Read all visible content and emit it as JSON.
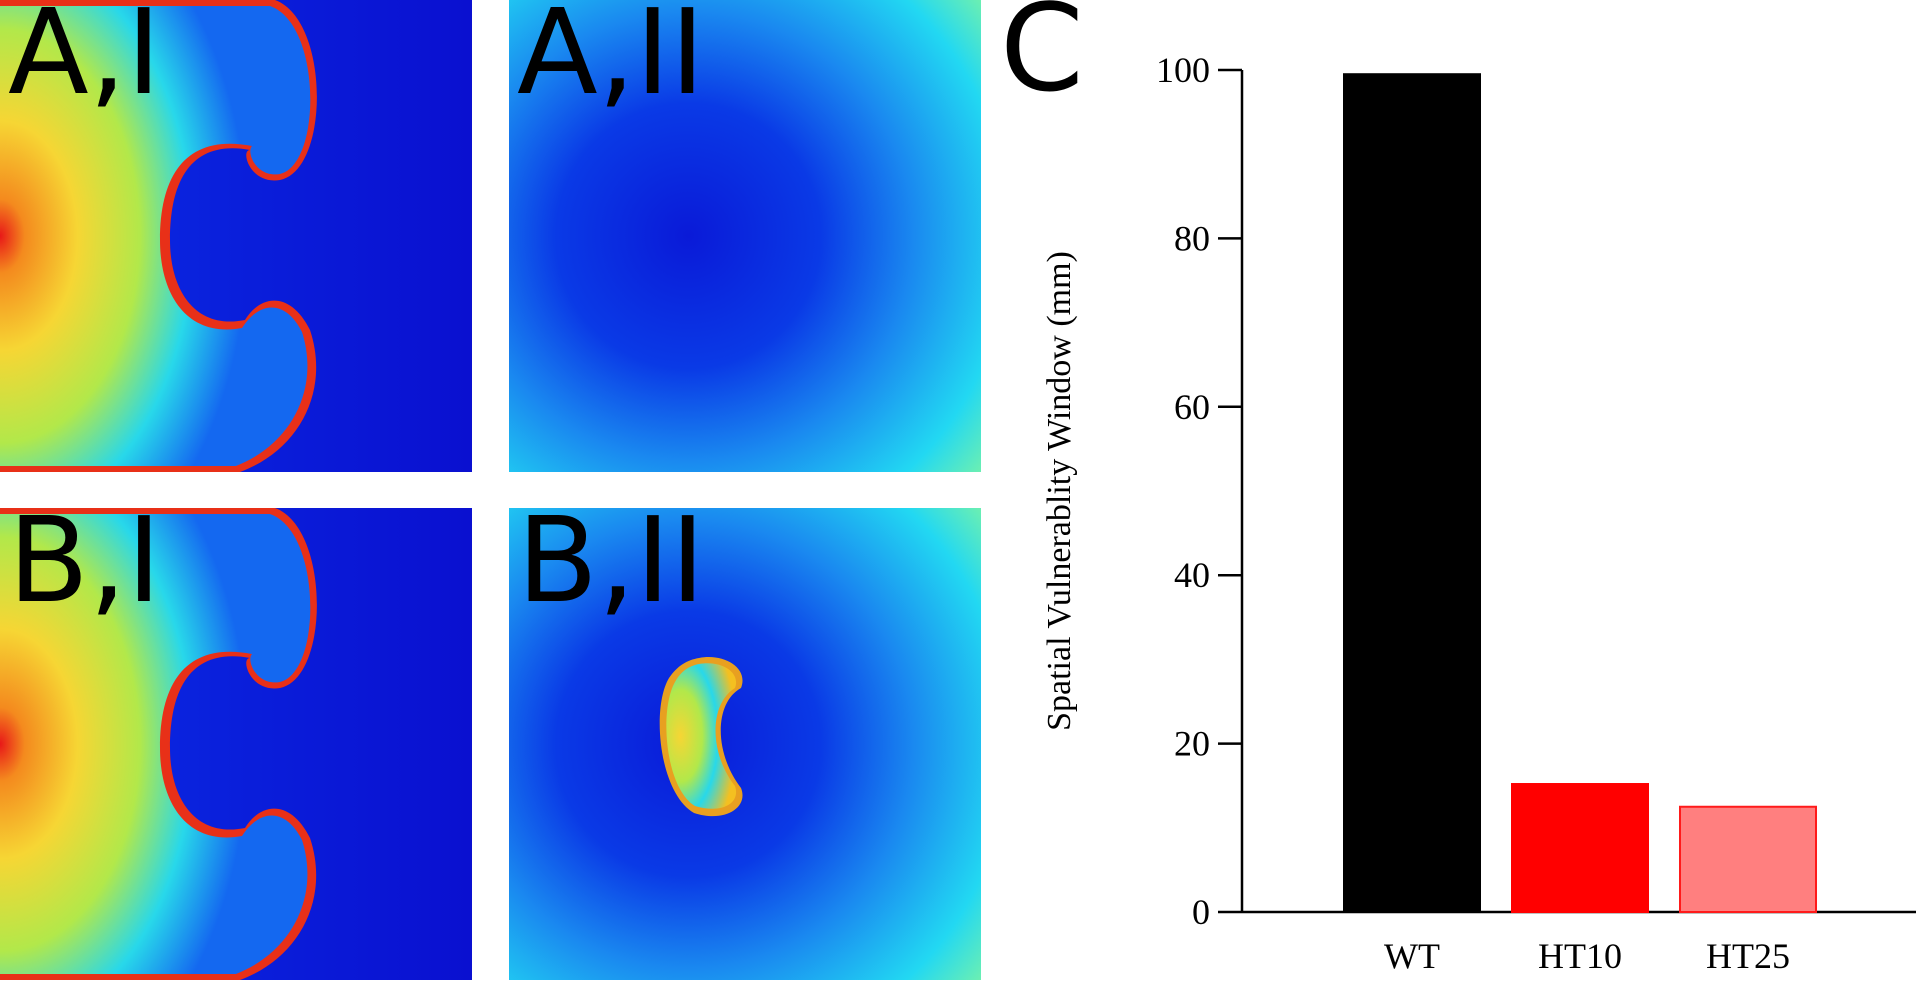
{
  "panels": {
    "a1": {
      "label": "A,I"
    },
    "a2": {
      "label": "A,II"
    },
    "b1": {
      "label": "B,I"
    },
    "b2": {
      "label": "B,II"
    }
  },
  "chart_label": "C",
  "colors": {
    "field_background": "#0a10d8",
    "wavefront_core": "#f4d23a",
    "wavefront_edge": "#e8141c",
    "tissue_cyan": "#22d6ee",
    "wt": "#000000",
    "ht10": "#ff0000",
    "ht25": "#ff7f7f"
  },
  "chart_data": {
    "type": "bar",
    "categories": [
      "WT",
      "HT10",
      "HT25"
    ],
    "values": [
      99.5,
      15.2,
      12.5
    ],
    "colors": [
      "#000000",
      "#ff0000",
      "#ff7f7f"
    ],
    "title": "",
    "xlabel": "",
    "ylabel": "Spatial Vulnerablity Window (mm)",
    "ylim": [
      0,
      100
    ],
    "yticks": [
      0,
      20,
      40,
      60,
      80,
      100
    ],
    "grid": false
  }
}
